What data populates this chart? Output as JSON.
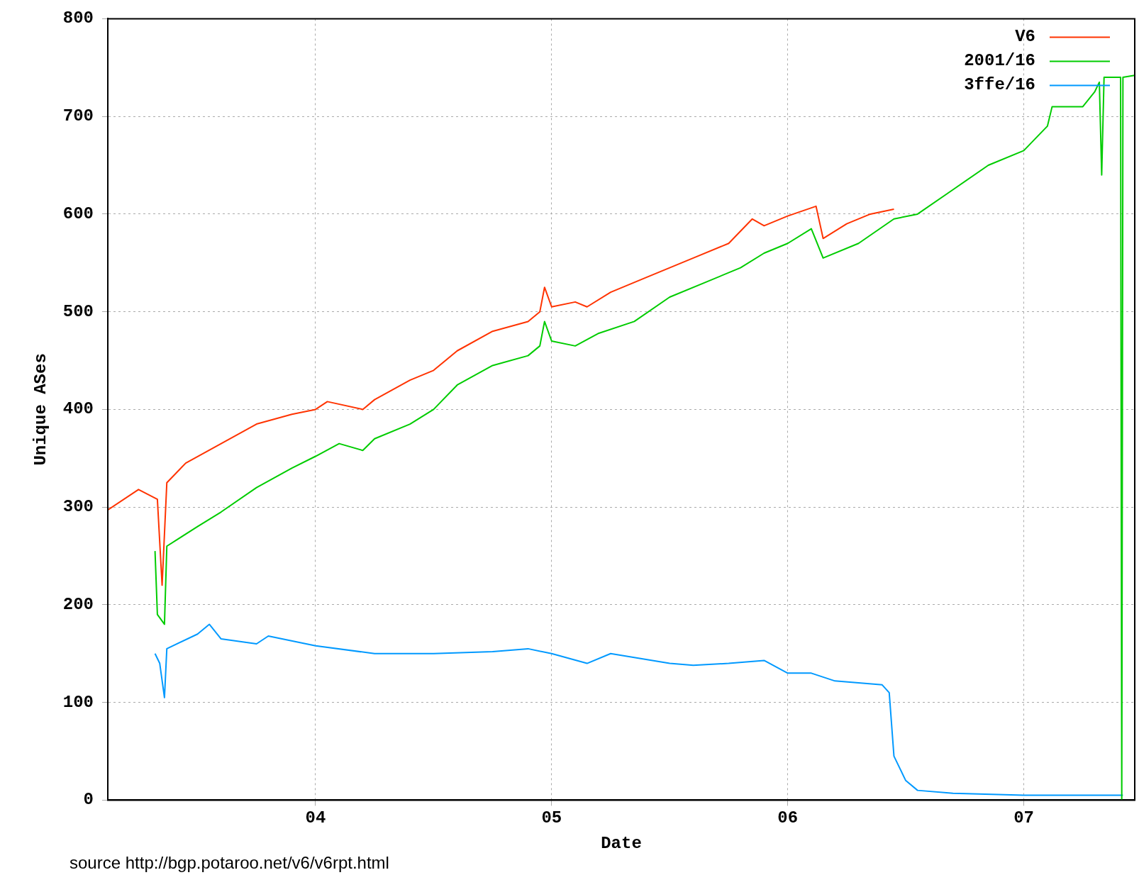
{
  "chart_data": {
    "type": "line",
    "xlabel": "Date",
    "ylabel": "Unique ASes",
    "xlim": [
      2003.12,
      2007.47
    ],
    "xticks": [
      {
        "value": 2004,
        "label": "04"
      },
      {
        "value": 2005,
        "label": "05"
      },
      {
        "value": 2006,
        "label": "06"
      },
      {
        "value": 2007,
        "label": "07"
      }
    ],
    "ylim": [
      0,
      800
    ],
    "yticks": [
      0,
      100,
      200,
      300,
      400,
      500,
      600,
      700,
      800
    ],
    "grid": true,
    "legend": "top right",
    "marker": "none",
    "line_style": "solid",
    "annotations": [
      "source http://bgp.potaroo.net/v6/v6rpt.html"
    ],
    "series": [
      {
        "name": "V6",
        "color": "#ff3300",
        "x": [
          2003.12,
          2003.25,
          2003.33,
          2003.35,
          2003.37,
          2003.45,
          2003.6,
          2003.75,
          2003.9,
          2004.0,
          2004.05,
          2004.2,
          2004.25,
          2004.4,
          2004.5,
          2004.6,
          2004.75,
          2004.9,
          2004.95,
          2004.97,
          2005.0,
          2005.1,
          2005.15,
          2005.25,
          2005.4,
          2005.5,
          2005.6,
          2005.75,
          2005.85,
          2005.9,
          2006.0,
          2006.12,
          2006.15,
          2006.25,
          2006.35,
          2006.45
        ],
        "values": [
          297,
          318,
          308,
          220,
          325,
          345,
          365,
          385,
          395,
          400,
          408,
          400,
          410,
          430,
          440,
          460,
          480,
          490,
          500,
          525,
          505,
          510,
          505,
          520,
          535,
          545,
          555,
          570,
          595,
          588,
          598,
          608,
          575,
          590,
          600,
          605
        ]
      },
      {
        "name": "2001/16",
        "color": "#00cc00",
        "x": [
          2003.32,
          2003.33,
          2003.36,
          2003.37,
          2003.5,
          2003.6,
          2003.75,
          2003.9,
          2004.0,
          2004.1,
          2004.2,
          2004.25,
          2004.4,
          2004.5,
          2004.6,
          2004.75,
          2004.9,
          2004.95,
          2004.97,
          2005.0,
          2005.1,
          2005.2,
          2005.35,
          2005.5,
          2005.65,
          2005.8,
          2005.9,
          2006.0,
          2006.1,
          2006.15,
          2006.3,
          2006.45,
          2006.55,
          2006.7,
          2006.85,
          2007.0,
          2007.1,
          2007.12,
          2007.25,
          2007.3,
          2007.32,
          2007.33,
          2007.34,
          2007.41,
          2007.415,
          2007.42,
          2007.47
        ],
        "values": [
          255,
          190,
          180,
          260,
          280,
          295,
          320,
          340,
          352,
          365,
          358,
          370,
          385,
          400,
          425,
          445,
          455,
          465,
          490,
          470,
          465,
          478,
          490,
          515,
          530,
          545,
          560,
          570,
          585,
          555,
          570,
          595,
          600,
          625,
          650,
          665,
          690,
          710,
          710,
          725,
          735,
          640,
          740,
          740,
          0,
          740,
          742
        ]
      },
      {
        "name": "3ffe/16",
        "color": "#0099ff",
        "x": [
          2003.32,
          2003.34,
          2003.36,
          2003.37,
          2003.5,
          2003.55,
          2003.6,
          2003.75,
          2003.8,
          2004.0,
          2004.25,
          2004.5,
          2004.75,
          2004.9,
          2005.0,
          2005.15,
          2005.25,
          2005.5,
          2005.6,
          2005.75,
          2005.9,
          2006.0,
          2006.1,
          2006.2,
          2006.4,
          2006.43,
          2006.45,
          2006.5,
          2006.55,
          2006.7,
          2007.0,
          2007.42
        ],
        "values": [
          150,
          140,
          105,
          155,
          170,
          180,
          165,
          160,
          168,
          158,
          150,
          150,
          152,
          155,
          150,
          140,
          150,
          140,
          138,
          140,
          143,
          130,
          130,
          122,
          118,
          110,
          45,
          20,
          10,
          7,
          5,
          5
        ]
      }
    ]
  }
}
